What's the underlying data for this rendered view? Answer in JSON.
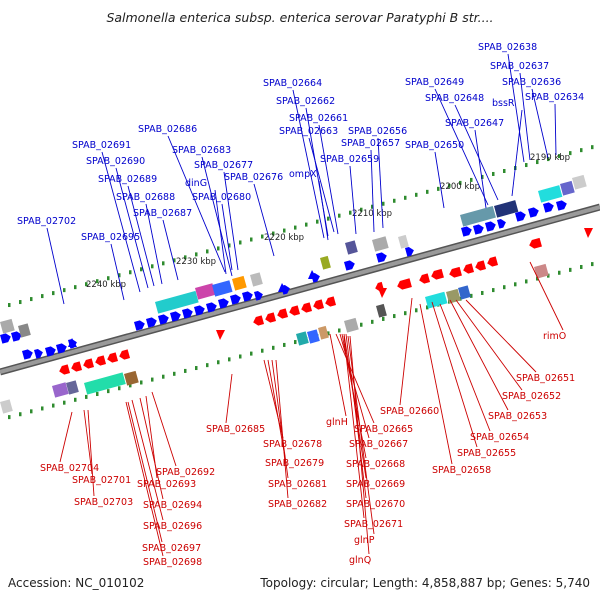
{
  "title": "Salmonella enterica subsp. enterica serovar Paratyphi B str....",
  "footer": {
    "accession": "Accession: NC_010102",
    "summary": "Topology: circular; Length: 4,858,887 bp; Genes: 5,740"
  },
  "colors": {
    "forward_label": "#0000cc",
    "reverse_label": "#cc0000",
    "forward_gene": "#0000ff",
    "reverse_gene": "#ff0000",
    "backbone": "#8c8c8c",
    "tick_green": "#2e8b2e"
  },
  "scale_labels": [
    "2240 kbp",
    "2230 kbp",
    "2220 kbp",
    "2210 kbp",
    "2200 kbp",
    "2190 kbp"
  ],
  "forward_labels": [
    "SPAB_02638",
    "SPAB_02637",
    "SPAB_02636",
    "SPAB_02634",
    "SPAB_02649",
    "SPAB_02648",
    "bssR",
    "SPAB_02647",
    "SPAB_02664",
    "SPAB_02662",
    "SPAB_02661",
    "SPAB_02663",
    "SPAB_02656",
    "SPAB_02657",
    "SPAB_02659",
    "SPAB_02650",
    "SPAB_02686",
    "SPAB_02691",
    "SPAB_02683",
    "SPAB_02690",
    "SPAB_02677",
    "SPAB_02689",
    "dinG",
    "SPAB_02676",
    "ompX",
    "SPAB_02688",
    "SPAB_02680",
    "SPAB_02687",
    "SPAB_02702",
    "SPAB_02695"
  ],
  "reverse_labels": [
    "rimO",
    "SPAB_02651",
    "SPAB_02652",
    "SPAB_02653",
    "SPAB_02660",
    "SPAB_02654",
    "SPAB_02655",
    "SPAB_02658",
    "SPAB_02685",
    "glnH",
    "SPAB_02665",
    "SPAB_02667",
    "SPAB_02678",
    "SPAB_02668",
    "SPAB_02679",
    "SPAB_02669",
    "SPAB_02681",
    "SPAB_02670",
    "SPAB_02682",
    "SPAB_02671",
    "glnP",
    "glnQ",
    "SPAB_02704",
    "SPAB_02701",
    "SPAB_02703",
    "SPAB_02692",
    "SPAB_02693",
    "SPAB_02694",
    "SPAB_02696",
    "SPAB_02697",
    "SPAB_02698"
  ]
}
